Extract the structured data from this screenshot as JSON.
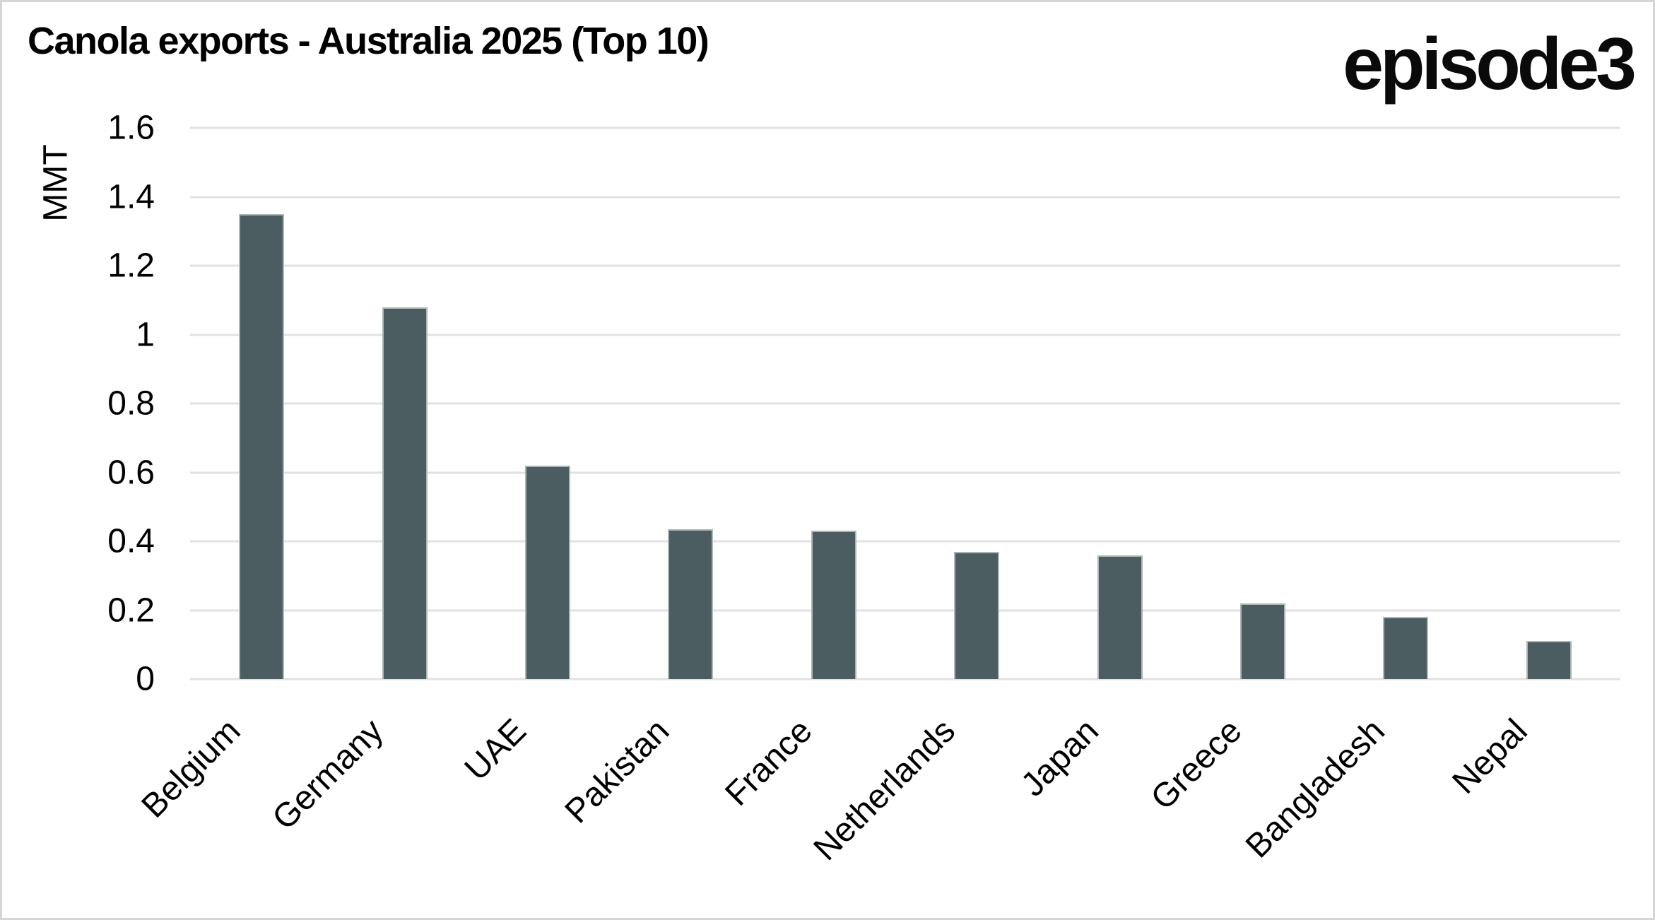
{
  "header": {
    "title": "Canola exports - Australia 2025 (Top 10)",
    "logo": "episode3"
  },
  "chart_data": {
    "type": "bar",
    "title": "Canola exports - Australia 2025 (Top 10)",
    "xlabel": "",
    "ylabel": "MMT",
    "ylim": [
      0,
      1.6
    ],
    "yticks": [
      0,
      0.2,
      0.4,
      0.6,
      0.8,
      1,
      1.2,
      1.4,
      1.6
    ],
    "grid": true,
    "legend_position": "none",
    "categories": [
      "Belgium",
      "Germany",
      "UAE",
      "Pakistan",
      "France",
      "Netherlands",
      "Japan",
      "Greece",
      "Bangladesh",
      "Nepal"
    ],
    "values": [
      1.35,
      1.08,
      0.62,
      0.435,
      0.43,
      0.37,
      0.36,
      0.22,
      0.18,
      0.11
    ],
    "bar_color": "#4b5d60",
    "gridline_color": "#e2e2e2"
  }
}
